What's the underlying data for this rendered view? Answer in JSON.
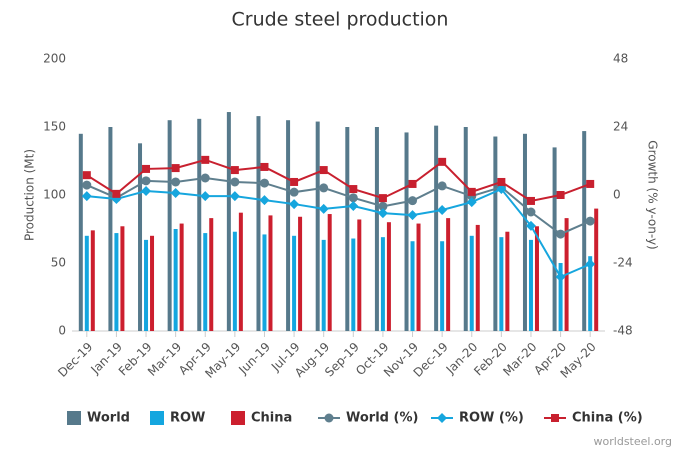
{
  "chart_data": {
    "type": "bar",
    "title": "Crude steel production",
    "categories": [
      "Dec-19",
      "Jan-19",
      "Feb-19",
      "Mar-19",
      "Apr-19",
      "May-19",
      "Jun-19",
      "Jul-19",
      "Aug-19",
      "Sep-19",
      "Oct-19",
      "Nov-19",
      "Dec-19",
      "Jan-20",
      "Feb-20",
      "Mar-20",
      "Apr-20",
      "May-20"
    ],
    "y_label": "Production (Mt)",
    "y2_label": "Growth (% y-on-y)",
    "ylim": [
      0,
      200
    ],
    "yticks": [
      0,
      50,
      100,
      150,
      200
    ],
    "y2lim": [
      -48,
      48
    ],
    "y2ticks": [
      -48,
      -24,
      0,
      24,
      48
    ],
    "series": [
      {
        "name": "World",
        "type": "bar",
        "color": "#56798b",
        "values": [
          145,
          150,
          138,
          155,
          156,
          161,
          158,
          155,
          154,
          150,
          150,
          146,
          151,
          150,
          143,
          145,
          135,
          147
        ]
      },
      {
        "name": "ROW",
        "type": "bar",
        "color": "#14a6df",
        "values": [
          70,
          72,
          67,
          75,
          72,
          73,
          71,
          70,
          67,
          68,
          69,
          66,
          66,
          70,
          69,
          67,
          50,
          55
        ]
      },
      {
        "name": "China",
        "type": "bar",
        "color": "#cc1f2e",
        "values": [
          74,
          77,
          70,
          79,
          83,
          87,
          85,
          84,
          86,
          82,
          80,
          79,
          83,
          78,
          73,
          77,
          83,
          90
        ]
      },
      {
        "name": "World (%)",
        "type": "line",
        "axis": "y2",
        "marker": "circle",
        "color": "#5f7f8e",
        "values": [
          3.5,
          -1,
          5,
          4.6,
          6,
          4.6,
          4.2,
          1,
          2.5,
          -1,
          -4,
          -2,
          3.2,
          -0.4,
          2.8,
          -6,
          -13.8,
          -9.2
        ]
      },
      {
        "name": "ROW (%)",
        "type": "line",
        "axis": "y2",
        "marker": "diamond",
        "color": "#16a6de",
        "values": [
          -0.4,
          -1.4,
          1.4,
          0.7,
          -0.4,
          -0.4,
          -1.8,
          -3.2,
          -4.9,
          -3.9,
          -6.4,
          -7.1,
          -5.3,
          -2.5,
          2.1,
          -10.9,
          -28.9,
          -24.4
        ]
      },
      {
        "name": "China (%)",
        "type": "line",
        "axis": "y2",
        "marker": "square",
        "color": "#c8202f",
        "values": [
          7,
          0.4,
          9.2,
          9.5,
          12.4,
          8.8,
          9.9,
          4.6,
          8.8,
          2.1,
          -1.1,
          3.9,
          11.7,
          1.1,
          4.6,
          -2.1,
          0,
          3.9
        ]
      }
    ],
    "credit": "worldsteel.org"
  }
}
